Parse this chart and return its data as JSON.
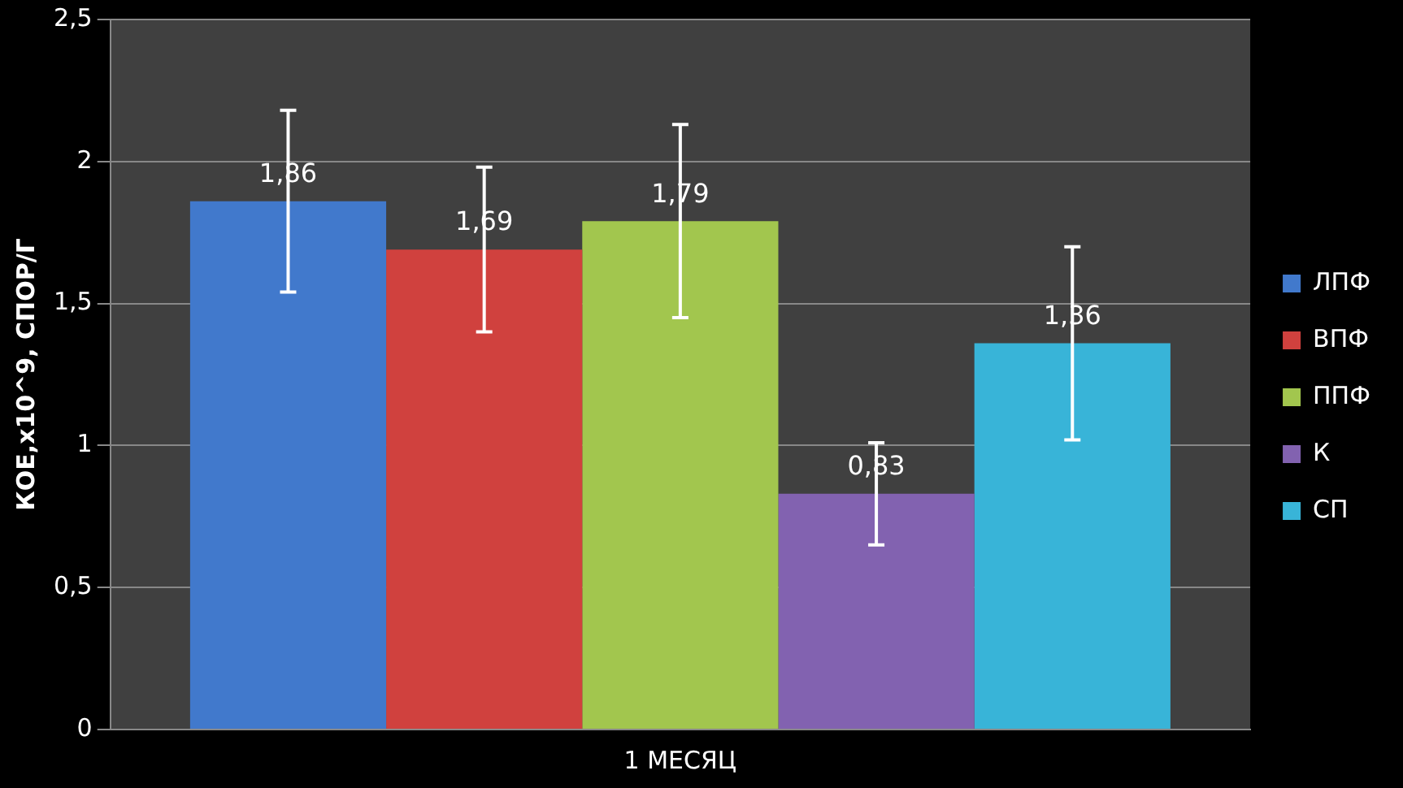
{
  "chart_data": {
    "type": "bar",
    "ylabel": "КОЕ,x10^9, СПОР/Г",
    "categories": [
      "1 МЕСЯЦ"
    ],
    "series": [
      {
        "name": "ЛПФ",
        "color": "#4179cc",
        "values": [
          1.86
        ],
        "errors": [
          0.32
        ],
        "value_labels": [
          "1,86"
        ]
      },
      {
        "name": "ВПФ",
        "color": "#d0413e",
        "values": [
          1.69
        ],
        "errors": [
          0.29
        ],
        "value_labels": [
          "1,69"
        ]
      },
      {
        "name": "ППФ",
        "color": "#a2c64e",
        "values": [
          1.79
        ],
        "errors": [
          0.34
        ],
        "value_labels": [
          "1,79"
        ]
      },
      {
        "name": "К",
        "color": "#8262b0",
        "values": [
          0.83
        ],
        "errors": [
          0.18
        ],
        "value_labels": [
          "0,83"
        ]
      },
      {
        "name": "СП",
        "color": "#38b4d8",
        "values": [
          1.36
        ],
        "errors": [
          0.34
        ],
        "value_labels": [
          "1,36"
        ]
      }
    ],
    "ylim": [
      0,
      2.5
    ],
    "yticks": [
      {
        "value": 0,
        "label": "0"
      },
      {
        "value": 0.5,
        "label": "0,5"
      },
      {
        "value": 1,
        "label": "1"
      },
      {
        "value": 1.5,
        "label": "1,5"
      },
      {
        "value": 2,
        "label": "2"
      },
      {
        "value": 2.5,
        "label": "2,5"
      }
    ],
    "grid": "y",
    "legend": "right"
  }
}
